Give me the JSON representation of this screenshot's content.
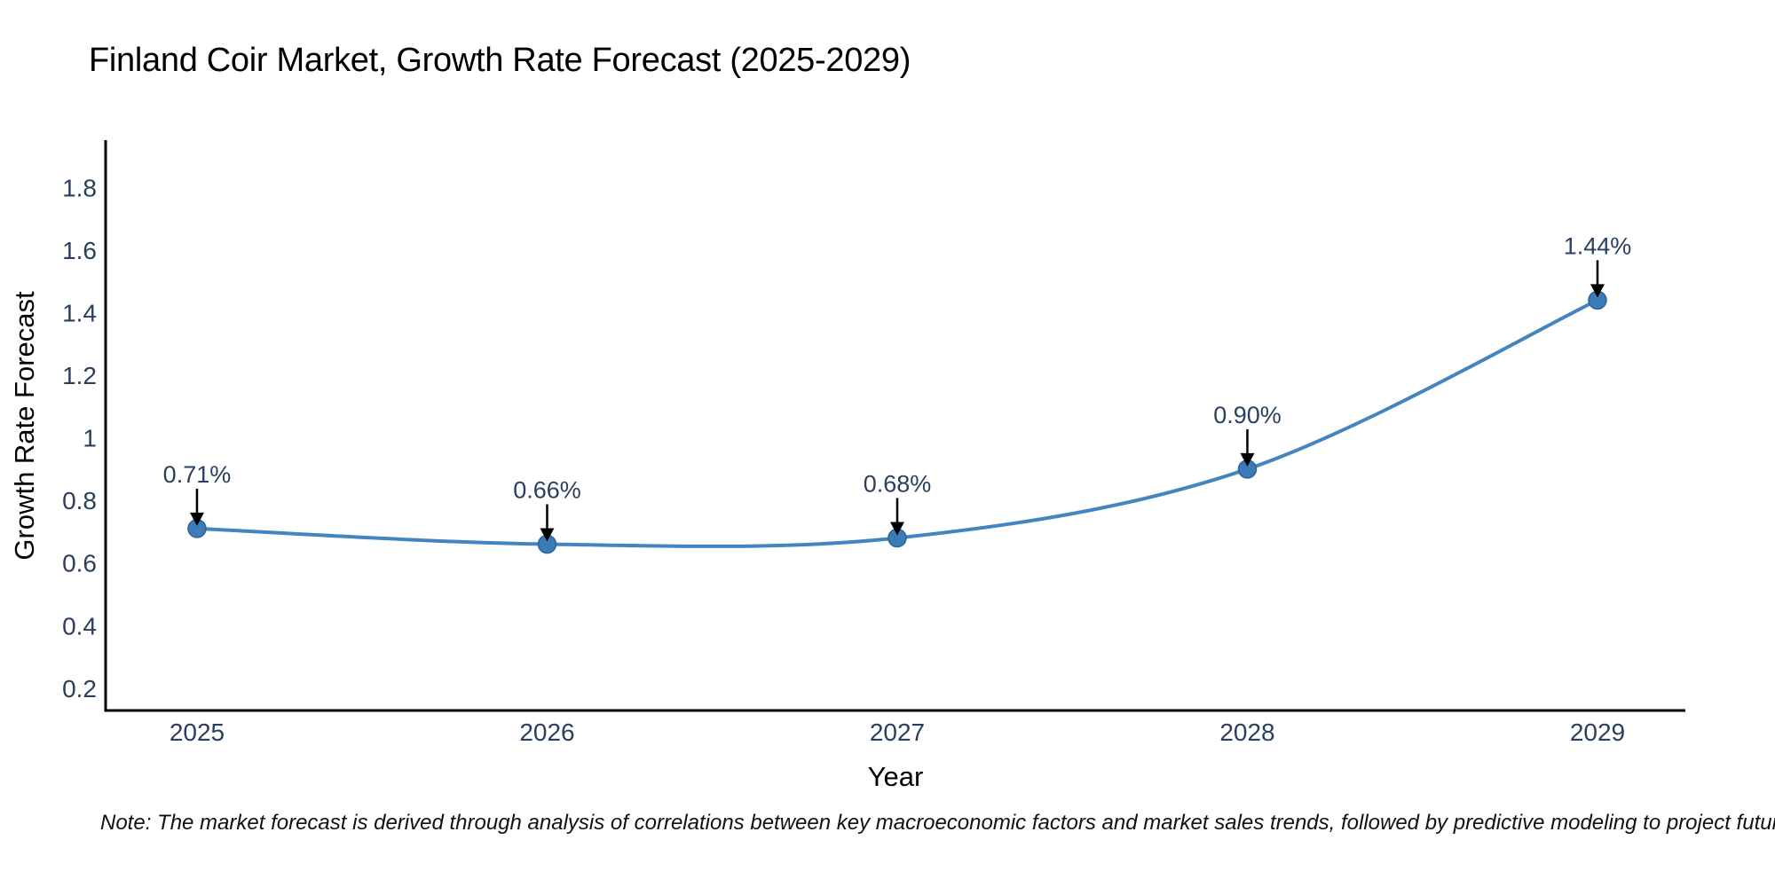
{
  "chart_data": {
    "type": "line",
    "line_shape": "spline",
    "title": "Finland Coir Market, Growth Rate Forecast (2025-2029)",
    "xlabel": "Year",
    "ylabel": "Growth Rate Forecast",
    "categories": [
      2025,
      2026,
      2027,
      2028,
      2029
    ],
    "series": [
      {
        "name": "Growth Rate Forecast",
        "values": [
          0.71,
          0.66,
          0.68,
          0.9,
          1.44
        ],
        "data_labels": [
          "0.71%",
          "0.66%",
          "0.68%",
          "0.90%",
          "1.44%"
        ]
      }
    ],
    "x_tick_labels": [
      "2025",
      "2026",
      "2027",
      "2028",
      "2029"
    ],
    "y_tick_labels": [
      "0.2",
      "0.4",
      "0.6",
      "0.8",
      "1",
      "1.2",
      "1.4",
      "1.6",
      "1.8"
    ],
    "y_tick_values": [
      0.2,
      0.4,
      0.6,
      0.8,
      1.0,
      1.2,
      1.4,
      1.6,
      1.8
    ],
    "x_range": [
      2024.739,
      2029.251
    ],
    "y_range": [
      0.1286,
      1.9513
    ],
    "grid": false,
    "legend": "none",
    "colors": {
      "line": "#4485c1",
      "marker_fill": "#3b7cb8",
      "marker_edge": "#2e6396",
      "axis_line": "#000000",
      "text": "#2a3f5f",
      "annotation_text": "#2a3f5f",
      "annotation_arrow": "#000000"
    }
  },
  "note": {
    "text": "Note: The market forecast is derived through analysis of correlations between key macroeconomic factors and market sales trends, followed by predictive modeling to project future sales"
  }
}
